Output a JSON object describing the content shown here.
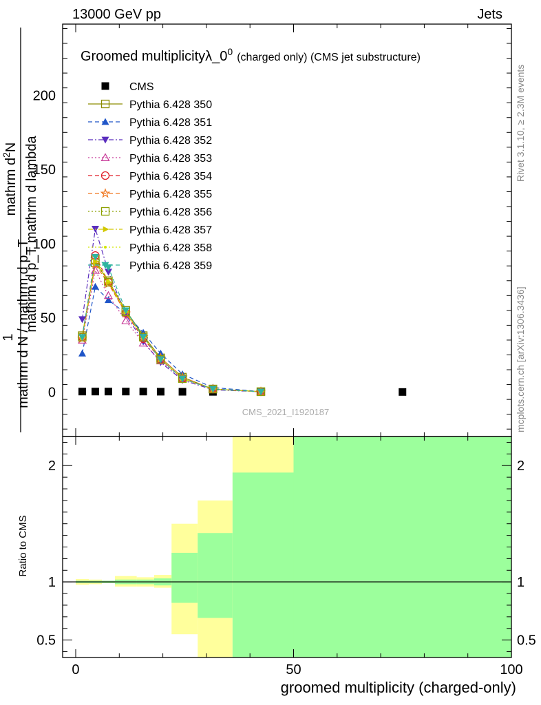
{
  "header": {
    "energy_label": "13000 GeV pp",
    "category_label": "Jets"
  },
  "side_labels": {
    "rivet": "Rivet 3.1.10, ≥ 2.3M events",
    "mcplots": "mcplots.cern.ch [arXiv:1306.3436]"
  },
  "watermark": "CMS_2021_I1920187",
  "colors": {
    "band_inner": "#9cff9c",
    "band_outer": "#ffff9c"
  },
  "chart_data": [
    {
      "type": "line",
      "title_main": "Groomed multiplicityλ_0",
      "title_sup": "0",
      "title_suffix": "(charged only) (CMS jet substructure)",
      "ylabel_numer_top": "mathrm d",
      "ylabel_numer_sup": "2",
      "ylabel_numer_end": "N",
      "ylabel_denom": "mathrm d p_T mathrm d lambda",
      "ylabel_prefactor": "1",
      "ylabel_lower": "mathrm d N / mathrm d p_T",
      "xlim": [
        -3,
        100
      ],
      "ylim": [
        -30,
        248
      ],
      "y_ticks": [
        0,
        50,
        100,
        150,
        200
      ],
      "x_ticks": [
        0,
        50,
        100
      ],
      "legend_position": "top-left",
      "series": [
        {
          "name": "CMS",
          "color": "#000000",
          "marker": "square-filled",
          "dash": "none",
          "x": [
            1.5,
            4.5,
            7.5,
            11.5,
            15.5,
            19.5,
            24.5,
            31.5,
            42.5,
            75
          ],
          "y": [
            0.3,
            0.3,
            0.3,
            0.3,
            0.3,
            0.2,
            0.15,
            0.1,
            0.05,
            0.01
          ]
        },
        {
          "name": "Pythia 6.428 350",
          "color": "#8c8c00",
          "marker": "square-open",
          "dash": "solid",
          "x": [
            1.5,
            4.5,
            7.5,
            11.5,
            15.5,
            19.5,
            24.5,
            31.5,
            42.5
          ],
          "y": [
            38,
            87,
            75,
            55,
            38,
            23,
            10,
            2,
            0.2
          ]
        },
        {
          "name": "Pythia 6.428 351",
          "color": "#1f55c8",
          "marker": "triangle-up-filled",
          "dash": "dashed",
          "x": [
            1.5,
            4.5,
            7.5,
            11.5,
            15.5,
            19.5,
            24.5,
            31.5,
            42.5
          ],
          "y": [
            26,
            71,
            62,
            53,
            40,
            26,
            12,
            3,
            0.3
          ]
        },
        {
          "name": "Pythia 6.428 352",
          "color": "#5a2dbe",
          "marker": "triangle-down-filled",
          "dash": "dashdot",
          "x": [
            1.5,
            4.5,
            7.5,
            11.5,
            15.5,
            19.5,
            24.5,
            31.5,
            42.5
          ],
          "y": [
            49,
            110,
            81,
            52,
            34,
            20,
            8,
            1.5,
            0.1
          ]
        },
        {
          "name": "Pythia 6.428 353",
          "color": "#c83c9a",
          "marker": "triangle-up-open",
          "dash": "dotted",
          "x": [
            1.5,
            4.5,
            7.5,
            11.5,
            15.5,
            19.5,
            24.5,
            31.5,
            42.5
          ],
          "y": [
            35,
            82,
            65,
            48,
            33,
            21,
            9,
            2,
            0.2
          ]
        },
        {
          "name": "Pythia 6.428 354",
          "color": "#e0202a",
          "marker": "circle-open",
          "dash": "dashed",
          "x": [
            1.5,
            4.5,
            7.5,
            11.5,
            15.5,
            19.5,
            24.5,
            31.5,
            42.5
          ],
          "y": [
            37,
            92,
            74,
            53,
            36,
            22,
            9,
            2,
            0.2
          ]
        },
        {
          "name": "Pythia 6.428 355",
          "color": "#f07820",
          "marker": "star-open",
          "dash": "dashed",
          "x": [
            1.5,
            4.5,
            7.5,
            11.5,
            15.5,
            19.5,
            24.5,
            31.5,
            42.5
          ],
          "y": [
            36,
            86,
            73,
            53,
            37,
            23,
            10,
            2,
            0.2
          ]
        },
        {
          "name": "Pythia 6.428 356",
          "color": "#8ca000",
          "marker": "square-open",
          "dash": "dotted",
          "x": [
            1.5,
            4.5,
            7.5,
            11.5,
            15.5,
            19.5,
            24.5,
            31.5,
            42.5
          ],
          "y": [
            37,
            89,
            74,
            54,
            37,
            22,
            9,
            2,
            0.2
          ]
        },
        {
          "name": "Pythia 6.428 357",
          "color": "#d2c800",
          "marker": "triangle-right-filled",
          "dash": "dashdot",
          "x": [
            1.5,
            4.5,
            7.5,
            11.5,
            15.5,
            19.5,
            24.5,
            31.5,
            42.5
          ],
          "y": [
            37,
            88,
            74,
            54,
            37,
            22,
            9,
            2,
            0.2
          ]
        },
        {
          "name": "Pythia 6.428 358",
          "color": "#d2e600",
          "marker": "dot",
          "dash": "dotted",
          "x": [
            1.5,
            4.5,
            7.5,
            11.5,
            15.5,
            19.5,
            24.5,
            31.5,
            42.5
          ],
          "y": [
            37,
            90,
            75,
            54,
            37,
            22,
            9,
            2,
            0.2
          ]
        },
        {
          "name": "Pythia 6.428 359",
          "color": "#30b4a0",
          "marker": "triangle-down-filled",
          "dash": "dashed",
          "x": [
            1.5,
            4.5,
            7.5,
            11.5,
            15.5,
            19.5,
            24.5,
            31.5,
            42.5
          ],
          "y": [
            37,
            91,
            84,
            55,
            37,
            22,
            9,
            2,
            0.2
          ]
        }
      ]
    },
    {
      "type": "area",
      "ylabel": "Ratio to CMS",
      "xlabel": "groomed multiplicity (charged-only)",
      "xlim": [
        -3,
        100
      ],
      "ylim": [
        0.35,
        2.25
      ],
      "y_ticks": [
        0.5,
        1,
        2
      ],
      "x_ticks": [
        0,
        50,
        100
      ],
      "reference_line": 1,
      "bands": [
        {
          "x0": 0,
          "x1": 3,
          "inner": [
            0.99,
            1.01
          ],
          "outer": [
            0.975,
            1.025
          ]
        },
        {
          "x0": 3,
          "x1": 6,
          "inner": [
            0.99,
            1.01
          ],
          "outer": [
            0.98,
            1.02
          ]
        },
        {
          "x0": 6,
          "x1": 9,
          "inner": [
            0.99,
            1.01
          ],
          "outer": [
            0.99,
            1.01
          ]
        },
        {
          "x0": 9,
          "x1": 14,
          "inner": [
            0.98,
            1.02
          ],
          "outer": [
            0.96,
            1.05
          ]
        },
        {
          "x0": 14,
          "x1": 18,
          "inner": [
            0.98,
            1.02
          ],
          "outer": [
            0.96,
            1.04
          ]
        },
        {
          "x0": 18,
          "x1": 22,
          "inner": [
            0.97,
            1.03
          ],
          "outer": [
            0.95,
            1.06
          ]
        },
        {
          "x0": 22,
          "x1": 28,
          "inner": [
            0.82,
            1.25
          ],
          "outer": [
            0.55,
            1.5
          ]
        },
        {
          "x0": 28,
          "x1": 36,
          "inner": [
            0.69,
            1.42
          ],
          "outer": [
            0.35,
            1.7
          ]
        },
        {
          "x0": 36,
          "x1": 50,
          "inner": [
            0.35,
            1.94
          ],
          "outer": [
            0.35,
            2.25
          ]
        },
        {
          "x0": 50,
          "x1": 100,
          "inner": [
            0.35,
            2.25
          ],
          "outer": [
            0.35,
            2.25
          ]
        }
      ]
    }
  ]
}
